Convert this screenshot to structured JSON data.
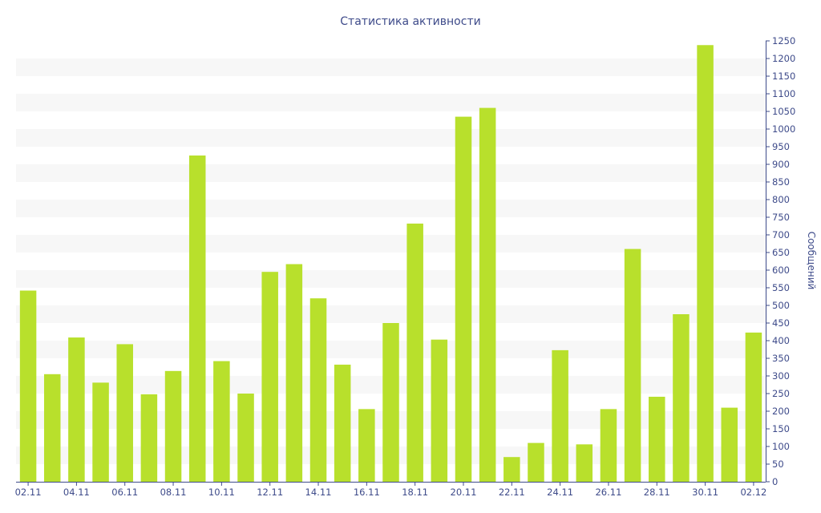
{
  "chart_data": {
    "type": "bar",
    "title": "Статистика активности",
    "xlabel": "",
    "ylabel": "Сообщений",
    "ylim": [
      0,
      1250
    ],
    "y_ticks": [
      0,
      50,
      100,
      150,
      200,
      250,
      300,
      350,
      400,
      450,
      500,
      550,
      600,
      650,
      700,
      750,
      800,
      850,
      900,
      950,
      1000,
      1050,
      1100,
      1150,
      1200,
      1250
    ],
    "y_axis_position": "right",
    "grid": "horizontal bands",
    "categories": [
      "02.11",
      "03.11",
      "04.11",
      "05.11",
      "06.11",
      "07.11",
      "08.11",
      "09.11",
      "10.11",
      "11.11",
      "12.11",
      "13.11",
      "14.11",
      "15.11",
      "16.11",
      "17.11",
      "18.11",
      "19.11",
      "20.11",
      "21.11",
      "22.11",
      "23.11",
      "24.11",
      "25.11",
      "26.11",
      "27.11",
      "28.11",
      "29.11",
      "30.11",
      "01.12",
      "02.12"
    ],
    "x_tick_labels": [
      "02.11",
      "04.11",
      "06.11",
      "08.11",
      "10.11",
      "12.11",
      "14.11",
      "16.11",
      "18.11",
      "20.11",
      "22.11",
      "24.11",
      "26.11",
      "28.11",
      "30.11",
      "02.12"
    ],
    "values": [
      542,
      305,
      409,
      281,
      390,
      248,
      314,
      925,
      342,
      250,
      595,
      617,
      520,
      332,
      206,
      450,
      732,
      403,
      1035,
      1060,
      70,
      110,
      373,
      106,
      206,
      660,
      241,
      475,
      1238,
      210,
      423
    ],
    "colors": {
      "bar": "#b8e02c",
      "band": "#f7f7f7",
      "axis": "#3e4b8a"
    }
  }
}
